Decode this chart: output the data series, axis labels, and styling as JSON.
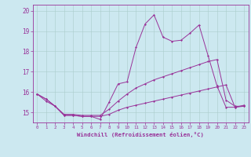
{
  "xlabel": "Windchill (Refroidissement éolien,°C)",
  "background_color": "#cce8f0",
  "line_color": "#993399",
  "grid_color": "#aacccc",
  "x_hours": [
    0,
    1,
    2,
    3,
    4,
    5,
    6,
    7,
    8,
    9,
    10,
    11,
    12,
    13,
    14,
    15,
    16,
    17,
    18,
    19,
    20,
    21,
    22,
    23
  ],
  "series1": [
    15.9,
    15.65,
    15.3,
    14.85,
    14.85,
    14.8,
    14.8,
    14.65,
    15.5,
    16.4,
    16.5,
    18.2,
    19.35,
    19.8,
    18.7,
    18.5,
    18.55,
    18.9,
    19.3,
    17.8,
    16.3,
    15.25,
    15.25,
    15.35
  ],
  "series2": [
    15.9,
    15.65,
    15.3,
    14.9,
    14.9,
    14.85,
    14.85,
    14.85,
    15.15,
    15.55,
    15.9,
    16.2,
    16.4,
    16.6,
    16.75,
    16.9,
    17.05,
    17.2,
    17.35,
    17.5,
    17.6,
    15.6,
    15.3,
    15.3
  ],
  "series3": [
    15.9,
    15.55,
    15.3,
    14.85,
    14.85,
    14.8,
    14.8,
    14.8,
    14.9,
    15.1,
    15.25,
    15.35,
    15.45,
    15.55,
    15.65,
    15.75,
    15.85,
    15.95,
    16.05,
    16.15,
    16.25,
    16.35,
    15.25,
    15.3
  ],
  "ylim": [
    14.5,
    20.3
  ],
  "yticks": [
    15,
    16,
    17,
    18,
    19,
    20
  ],
  "figsize": [
    3.2,
    2.0
  ],
  "dpi": 100
}
